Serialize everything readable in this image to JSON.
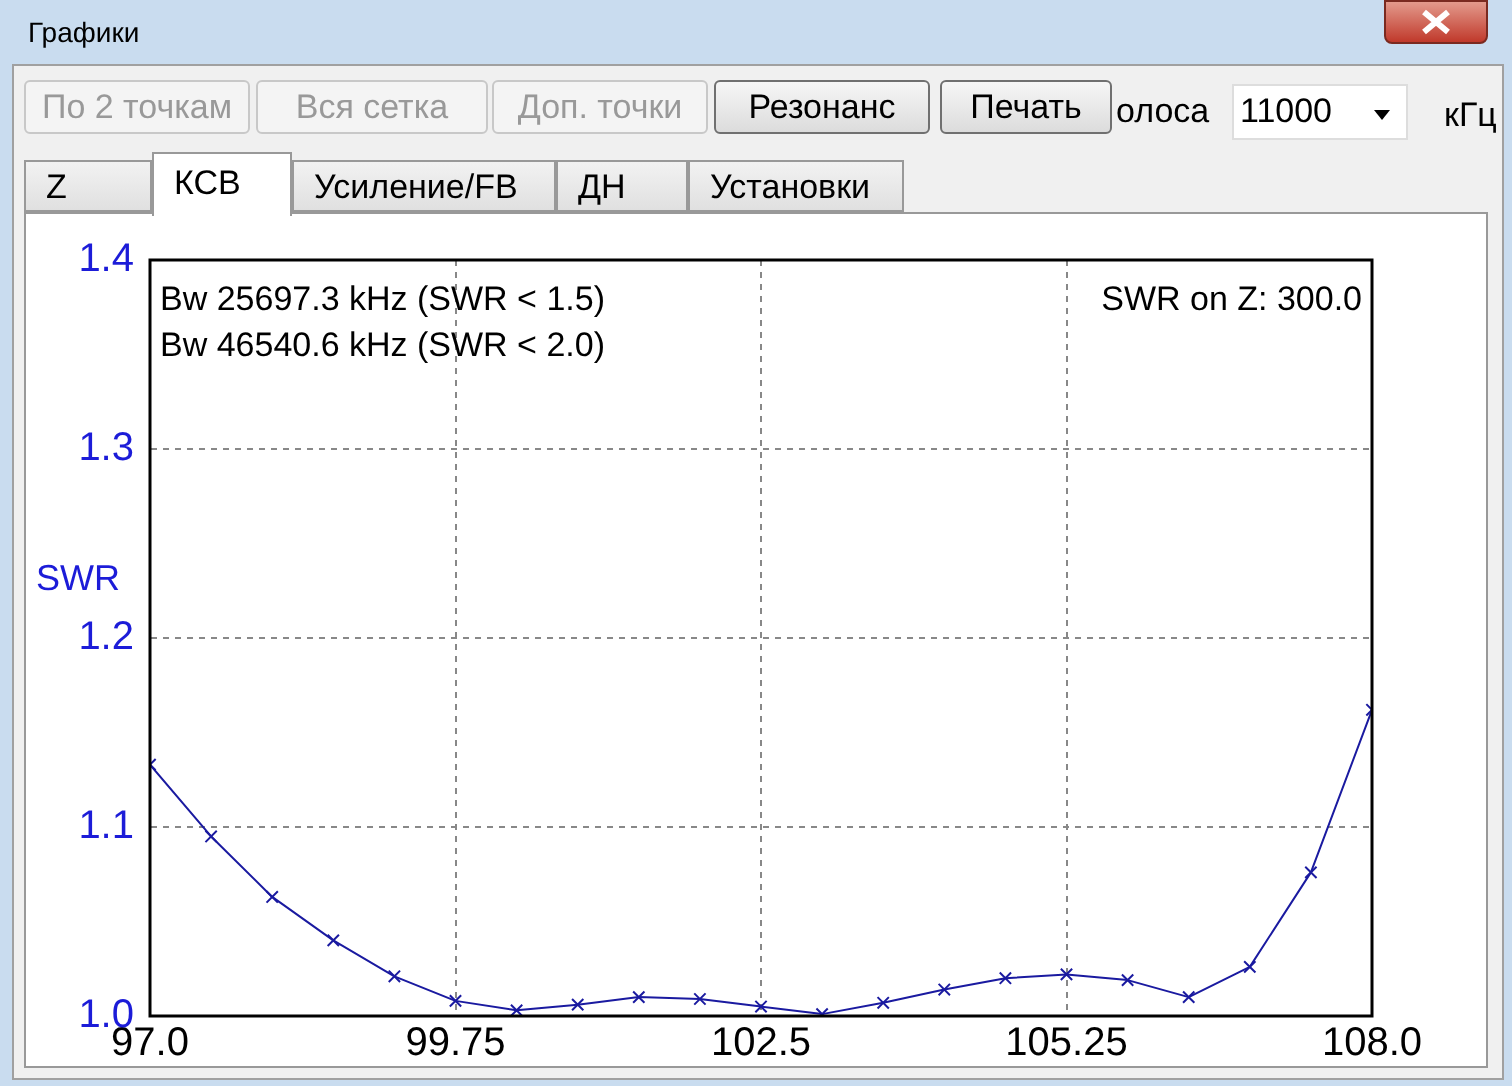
{
  "chart_data": {
    "type": "line",
    "title": "Графики",
    "ylabel": "SWR",
    "annotations": [
      "Bw 25697.3 kHz (SWR < 1.5)",
      "Bw 46540.6 kHz (SWR < 2.0)",
      "SWR on Z: 300.0",
      "По 2 точкам",
      "Вся сетка",
      "Доп. точки",
      "Резонанс",
      "Печать",
      "олоса",
      "11000",
      "кГц",
      "Z",
      "КСВ",
      "Усиление/FB",
      "ДН",
      "Установки"
    ],
    "x": [
      97.0,
      97.55,
      98.1,
      98.65,
      99.2,
      99.75,
      100.3,
      100.85,
      101.4,
      101.95,
      102.5,
      103.05,
      103.6,
      104.15,
      104.7,
      105.25,
      105.8,
      106.35,
      106.9,
      107.45,
      108.0
    ],
    "series": [
      {
        "color": "#1a1aa0",
        "values": [
          1.133,
          1.095,
          1.063,
          1.04,
          1.021,
          1.008,
          1.003,
          1.006,
          1.01,
          1.009,
          1.005,
          1.001,
          1.007,
          1.014,
          1.02,
          1.022,
          1.019,
          1.01,
          1.026,
          1.076,
          1.162
        ]
      }
    ],
    "xlim": [
      97,
      108
    ],
    "xticks": [
      {
        "value": 97,
        "label": "97.0"
      },
      99.75,
      102.5,
      105.25,
      {
        "value": 108,
        "label": "108.0"
      }
    ],
    "ylim": [
      1.0,
      1.4
    ],
    "yticks": [
      {
        "value": 1.0,
        "label": "1.0"
      },
      1.1,
      1.2,
      1.3,
      1.4
    ],
    "grid": true,
    "legend": false,
    "marker": "cross",
    "line_style": "solid"
  }
}
